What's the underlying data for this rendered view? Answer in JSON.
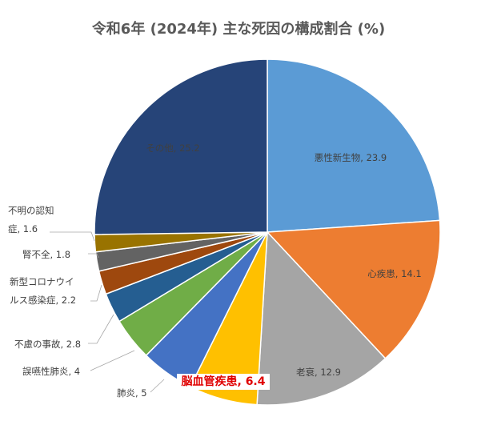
{
  "chart_data": {
    "type": "pie",
    "title": "令和6年 (2024年) 主な死因の構成割合 (%)",
    "slices": [
      {
        "name": "悪性新生物",
        "value": 23.9,
        "label": "悪性新生物, 23.9",
        "color": "#5b9bd5"
      },
      {
        "name": "心疾患",
        "value": 14.1,
        "label": "心疾患, 14.1",
        "color": "#ed7d31"
      },
      {
        "name": "老衰",
        "value": 12.9,
        "label": "老衰, 12.9",
        "color": "#a5a5a5"
      },
      {
        "name": "脳血管疾患",
        "value": 6.4,
        "label": "脳血管疾患, 6.4",
        "color": "#ffc000",
        "highlight": true
      },
      {
        "name": "肺炎",
        "value": 5,
        "label": "肺炎, 5",
        "color": "#4472c4"
      },
      {
        "name": "誤嚥性肺炎",
        "value": 4,
        "label": "誤嚥性肺炎, 4",
        "color": "#70ad47"
      },
      {
        "name": "不慮の事故",
        "value": 2.8,
        "label": "不慮の事故, 2.8",
        "color": "#255e91"
      },
      {
        "name": "新型コロナウイルス感染症",
        "value": 2.2,
        "label_lines": [
          "新型コロナウイ",
          "ルス感染症, 2.2"
        ],
        "color": "#9e480e"
      },
      {
        "name": "腎不全",
        "value": 1.8,
        "label": "腎不全, 1.8",
        "color": "#636363"
      },
      {
        "name": "不明の認知症",
        "value": 1.6,
        "label_lines": [
          "不明の認知",
          "症, 1.6"
        ],
        "color": "#997300"
      },
      {
        "name": "その他",
        "value": 25.2,
        "label": "その他, 25.2",
        "color": "#264478"
      }
    ]
  }
}
